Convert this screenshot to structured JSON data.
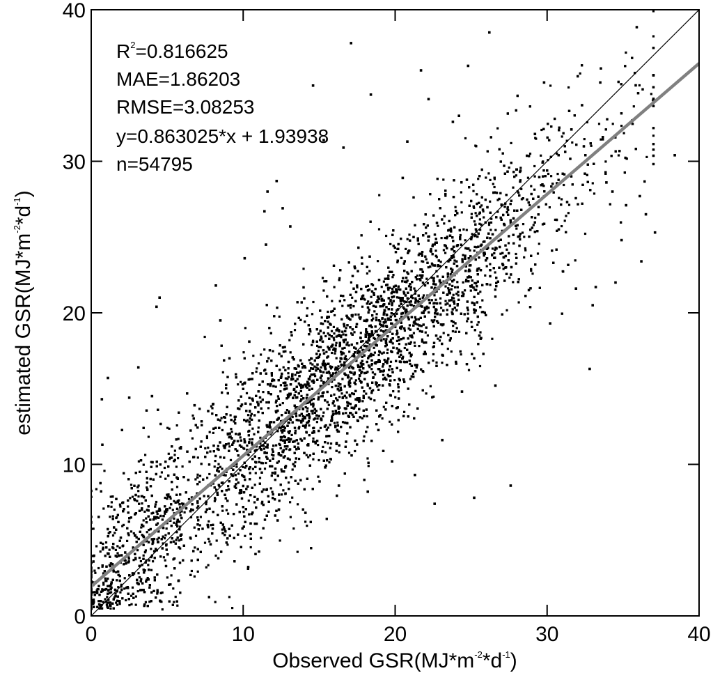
{
  "chart_data": {
    "type": "scatter",
    "xlabel": {
      "prefix": "Observed GSR(MJ*m",
      "sup1": "-2",
      "mid": "*d",
      "sup2": "-1",
      "suffix": ")"
    },
    "ylabel": {
      "prefix": "estimated GSR(MJ*m",
      "sup1": "-2",
      "mid": "*d",
      "sup2": "-1",
      "suffix": ")"
    },
    "xlim": [
      0,
      40
    ],
    "ylim": [
      0,
      40
    ],
    "xticks": [
      "0",
      "10",
      "20",
      "30",
      "40"
    ],
    "yticks": [
      "0",
      "10",
      "20",
      "30",
      "40"
    ],
    "grid": false,
    "stats": {
      "r2_label": "R",
      "r2_sup": "2",
      "r2_value": "=0.816625",
      "mae": "MAE=1.86203",
      "rmse": "RMSE=3.08253",
      "equation": "y=0.863025*x + 1.93938",
      "n": "n=54795"
    },
    "regression": {
      "slope": 0.863025,
      "intercept": 1.93938,
      "color": "#808080"
    },
    "identity_line": {
      "slope": 1,
      "intercept": 0,
      "color": "#000000"
    },
    "point_color": "#000000",
    "n_points": 54795,
    "outliers": [
      [
        26.2,
        38.5
      ],
      [
        17.1,
        37.8
      ],
      [
        24.8,
        36.3
      ],
      [
        21.7,
        36.0
      ],
      [
        33.5,
        35.2
      ],
      [
        14.6,
        35.0
      ],
      [
        22.2,
        34.1
      ],
      [
        18.4,
        34.4
      ],
      [
        29.8,
        35.2
      ],
      [
        24.2,
        33.0
      ],
      [
        32.3,
        33.7
      ],
      [
        23.8,
        32.6
      ],
      [
        16.6,
        30.9
      ],
      [
        20.8,
        31.3
      ],
      [
        29.2,
        31.8
      ],
      [
        31.6,
        32.1
      ],
      [
        15.3,
        31.4
      ],
      [
        38.4,
        30.4
      ],
      [
        33.9,
        28.6
      ],
      [
        34.3,
        28.0
      ],
      [
        36.1,
        27.7
      ],
      [
        37.1,
        25.3
      ],
      [
        36.5,
        26.5
      ],
      [
        35.2,
        27.1
      ],
      [
        34.9,
        24.8
      ],
      [
        36.2,
        23.4
      ],
      [
        34.5,
        22.0
      ],
      [
        33.2,
        21.7
      ],
      [
        31.9,
        21.6
      ],
      [
        33.0,
        20.5
      ],
      [
        32.8,
        16.3
      ],
      [
        27.6,
        8.6
      ],
      [
        25.2,
        7.8
      ],
      [
        22.6,
        7.4
      ],
      [
        21.3,
        9.3
      ],
      [
        19.8,
        10.2
      ],
      [
        15.4,
        9.8
      ],
      [
        16.3,
        8.6
      ],
      [
        11.6,
        28.0
      ],
      [
        11.4,
        26.7
      ],
      [
        12.2,
        28.7
      ],
      [
        11.5,
        24.5
      ],
      [
        10.1,
        23.6
      ],
      [
        8.2,
        21.8
      ],
      [
        4.5,
        21.0
      ],
      [
        4.3,
        20.4
      ],
      [
        3.1,
        16.4
      ],
      [
        1.1,
        15.7
      ],
      [
        4.0,
        14.5
      ],
      [
        8.5,
        19.5
      ],
      [
        10.4,
        18.1
      ],
      [
        9.1,
        17.0
      ],
      [
        13.1,
        25.7
      ],
      [
        12.6,
        26.9
      ],
      [
        20.5,
        28.9
      ],
      [
        27.2,
        25.8
      ],
      [
        28.8,
        21.5
      ],
      [
        30.2,
        19.3
      ],
      [
        26.6,
        15.2
      ],
      [
        24.4,
        14.8
      ],
      [
        23.1,
        11.6
      ],
      [
        18.2,
        8.2
      ],
      [
        14.1,
        6.8
      ],
      [
        2.5,
        14.4
      ],
      [
        6.8,
        13.9
      ],
      [
        0.7,
        14.3
      ]
    ]
  }
}
